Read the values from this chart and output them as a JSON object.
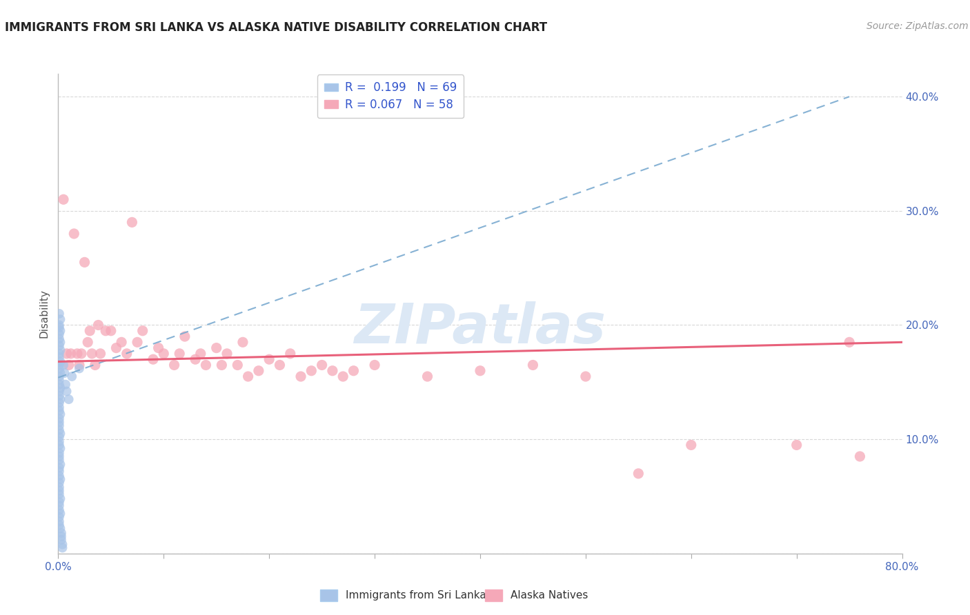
{
  "title": "IMMIGRANTS FROM SRI LANKA VS ALASKA NATIVE DISABILITY CORRELATION CHART",
  "source": "Source: ZipAtlas.com",
  "ylabel": "Disability",
  "xlim": [
    0.0,
    0.8
  ],
  "ylim": [
    0.0,
    0.42
  ],
  "xticks": [
    0.0,
    0.1,
    0.2,
    0.3,
    0.4,
    0.5,
    0.6,
    0.7,
    0.8
  ],
  "xticklabels": [
    "0.0%",
    "",
    "",
    "",
    "",
    "",
    "",
    "",
    "80.0%"
  ],
  "yticks": [
    0.0,
    0.1,
    0.2,
    0.3,
    0.4
  ],
  "yticklabels_right": [
    "",
    "10.0%",
    "20.0%",
    "30.0%",
    "40.0%"
  ],
  "r_blue": 0.199,
  "n_blue": 69,
  "r_pink": 0.067,
  "n_pink": 58,
  "blue_color": "#a8c4e8",
  "pink_color": "#f5a8b8",
  "blue_line_color": "#7aaad0",
  "pink_line_color": "#e8607a",
  "watermark": "ZIPatlas",
  "watermark_color": "#dce8f5",
  "background_color": "#ffffff",
  "grid_color": "#d8d8d8",
  "blue_scatter_x": [
    0.001,
    0.002,
    0.001,
    0.001,
    0.002,
    0.001,
    0.001,
    0.002,
    0.001,
    0.002,
    0.001,
    0.001,
    0.002,
    0.001,
    0.001,
    0.002,
    0.001,
    0.001,
    0.001,
    0.002,
    0.001,
    0.001,
    0.002,
    0.001,
    0.001,
    0.001,
    0.002,
    0.001,
    0.001,
    0.001,
    0.001,
    0.002,
    0.001,
    0.001,
    0.001,
    0.002,
    0.001,
    0.001,
    0.001,
    0.002,
    0.001,
    0.001,
    0.001,
    0.002,
    0.001,
    0.001,
    0.001,
    0.001,
    0.002,
    0.001,
    0.001,
    0.001,
    0.002,
    0.001,
    0.001,
    0.001,
    0.002,
    0.003,
    0.003,
    0.003,
    0.004,
    0.004,
    0.005,
    0.006,
    0.007,
    0.008,
    0.01,
    0.013,
    0.02
  ],
  "blue_scatter_y": [
    0.21,
    0.205,
    0.2,
    0.198,
    0.195,
    0.192,
    0.188,
    0.185,
    0.182,
    0.178,
    0.175,
    0.172,
    0.168,
    0.165,
    0.162,
    0.158,
    0.155,
    0.152,
    0.148,
    0.145,
    0.142,
    0.138,
    0.135,
    0.132,
    0.128,
    0.125,
    0.122,
    0.118,
    0.115,
    0.112,
    0.108,
    0.105,
    0.102,
    0.098,
    0.095,
    0.092,
    0.088,
    0.085,
    0.082,
    0.078,
    0.075,
    0.072,
    0.068,
    0.065,
    0.062,
    0.058,
    0.055,
    0.052,
    0.048,
    0.045,
    0.042,
    0.038,
    0.035,
    0.032,
    0.028,
    0.025,
    0.022,
    0.018,
    0.015,
    0.012,
    0.008,
    0.005,
    0.165,
    0.158,
    0.148,
    0.142,
    0.135,
    0.155,
    0.162
  ],
  "pink_scatter_x": [
    0.005,
    0.008,
    0.01,
    0.012,
    0.015,
    0.018,
    0.02,
    0.022,
    0.025,
    0.028,
    0.03,
    0.032,
    0.035,
    0.038,
    0.04,
    0.045,
    0.05,
    0.055,
    0.06,
    0.065,
    0.07,
    0.075,
    0.08,
    0.09,
    0.095,
    0.1,
    0.11,
    0.115,
    0.12,
    0.13,
    0.135,
    0.14,
    0.15,
    0.155,
    0.16,
    0.17,
    0.175,
    0.18,
    0.19,
    0.2,
    0.21,
    0.22,
    0.23,
    0.24,
    0.25,
    0.26,
    0.27,
    0.28,
    0.3,
    0.35,
    0.4,
    0.45,
    0.5,
    0.55,
    0.6,
    0.7,
    0.75,
    0.76
  ],
  "pink_scatter_y": [
    0.31,
    0.175,
    0.165,
    0.175,
    0.28,
    0.175,
    0.165,
    0.175,
    0.255,
    0.185,
    0.195,
    0.175,
    0.165,
    0.2,
    0.175,
    0.195,
    0.195,
    0.18,
    0.185,
    0.175,
    0.29,
    0.185,
    0.195,
    0.17,
    0.18,
    0.175,
    0.165,
    0.175,
    0.19,
    0.17,
    0.175,
    0.165,
    0.18,
    0.165,
    0.175,
    0.165,
    0.185,
    0.155,
    0.16,
    0.17,
    0.165,
    0.175,
    0.155,
    0.16,
    0.165,
    0.16,
    0.155,
    0.16,
    0.165,
    0.155,
    0.16,
    0.165,
    0.155,
    0.07,
    0.095,
    0.095,
    0.185,
    0.085
  ],
  "blue_trend_x0": 0.0,
  "blue_trend_x1": 0.75,
  "blue_trend_y0": 0.154,
  "blue_trend_y1": 0.4,
  "pink_trend_x0": 0.0,
  "pink_trend_x1": 0.8,
  "pink_trend_y0": 0.168,
  "pink_trend_y1": 0.185,
  "legend_blue_label_r": "R =  0.199",
  "legend_blue_label_n": "N = 69",
  "legend_pink_label_r": "R = 0.067",
  "legend_pink_label_n": "N = 58",
  "bottom_legend_blue": "Immigrants from Sri Lanka",
  "bottom_legend_pink": "Alaska Natives"
}
